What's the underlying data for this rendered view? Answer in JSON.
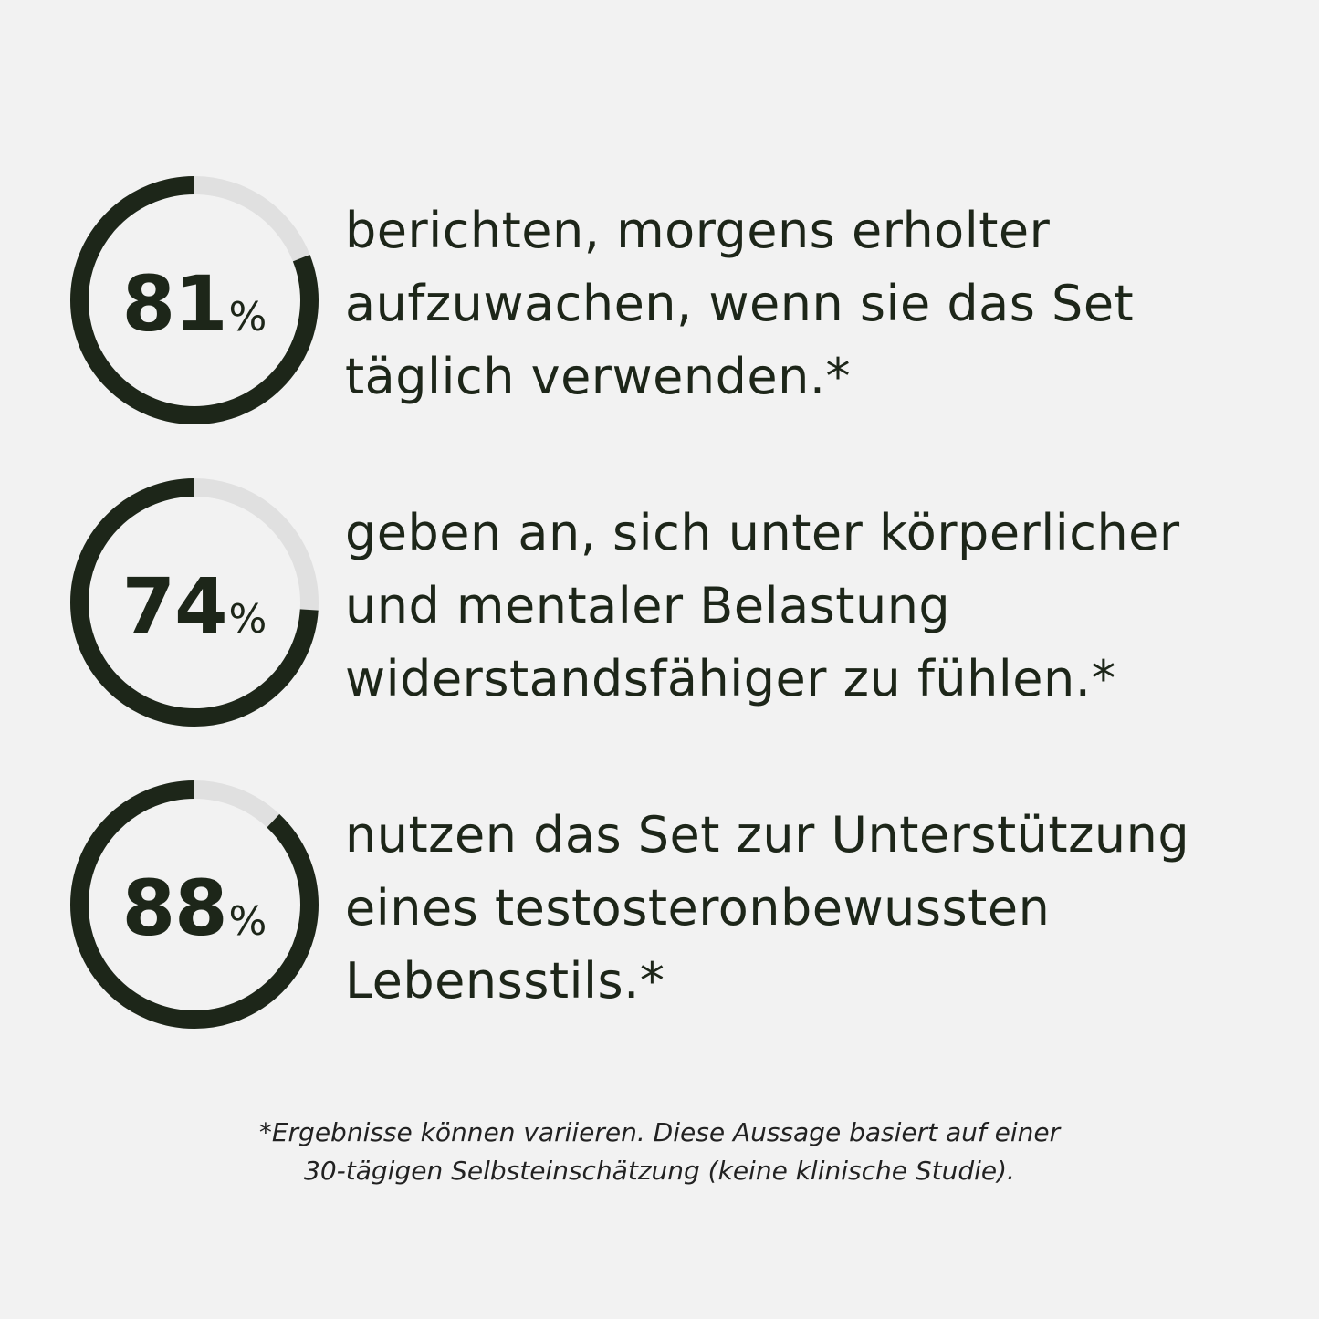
{
  "colors": {
    "background": "#f2f2f2",
    "ring_filled": "#1d2619",
    "ring_track": "#e0e0e0",
    "text": "#1d2619"
  },
  "stats": [
    {
      "value": "81",
      "percent_sign": "%",
      "fraction": 0.81,
      "text_lines": [
        "berichten, morgens erholter",
        "aufzuwachen, wenn sie das Set",
        "täglich verwenden.*"
      ]
    },
    {
      "value": "74",
      "percent_sign": "%",
      "fraction": 0.74,
      "text_lines": [
        "geben an, sich unter körperlicher",
        "und mentaler Belastung",
        "widerstandsfähiger zu fühlen.*"
      ]
    },
    {
      "value": "88",
      "percent_sign": "%",
      "fraction": 0.88,
      "text_lines": [
        "nutzen das Set zur Unterstützung",
        "eines testosteronbewussten",
        "Lebensstils.*"
      ]
    }
  ],
  "footnote": {
    "lines": [
      "*Ergebnisse können variieren. Diese Aussage basiert auf einer",
      "30-tägigen Selbsteinschätzung (keine klinische Studie)."
    ]
  }
}
